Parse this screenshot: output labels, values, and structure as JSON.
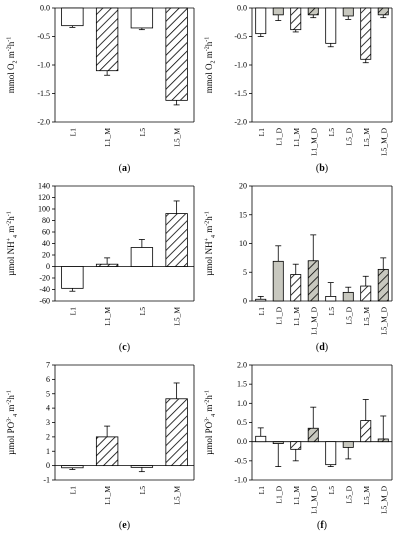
{
  "chart_data": [
    {
      "type": "bar",
      "panel_label": "(a)",
      "ylabel": "mmol O2 m-2h-1",
      "ylabel_parts": {
        "pre": "mmol O",
        "sub": "2",
        "mid": " m",
        "sup1": "-2",
        "mid2": "h",
        "sup2": "-1"
      },
      "ylim": [
        -2.0,
        0.0
      ],
      "yticks": [
        0.0,
        -0.5,
        -1.0,
        -1.5,
        -2.0
      ],
      "ytick_labels": [
        "0.0",
        "-0.5",
        "-1.0",
        "-1.5",
        "-2.0"
      ],
      "categories": [
        "L1",
        "L1_M",
        "L5",
        "L5_M"
      ],
      "values": [
        -0.31,
        -1.1,
        -0.35,
        -1.62
      ],
      "errors": [
        0.03,
        0.08,
        0.03,
        0.08
      ],
      "fills": [
        "white",
        "hatch",
        "white",
        "hatch"
      ]
    },
    {
      "type": "bar",
      "panel_label": "(b)",
      "ylabel": "mmol O2 m-2h-1",
      "ylabel_parts": {
        "pre": "mmol O",
        "sub": "2",
        "mid": " m",
        "sup1": "-2",
        "mid2": "h",
        "sup2": "-1"
      },
      "ylim": [
        -2.0,
        0.0
      ],
      "yticks": [
        0.0,
        -0.5,
        -1.0,
        -1.5,
        -2.0
      ],
      "ytick_labels": [
        "0.0",
        "-0.5",
        "-1.0",
        "-1.5",
        "-2.0"
      ],
      "categories": [
        "L1",
        "L1_D",
        "L1_M",
        "L1_M_D",
        "L5",
        "L5_D",
        "L5_M",
        "L5_M_D"
      ],
      "values": [
        -0.45,
        -0.12,
        -0.38,
        -0.12,
        -0.62,
        -0.14,
        -0.9,
        -0.12
      ],
      "errors": [
        0.05,
        0.1,
        0.04,
        0.05,
        0.06,
        0.06,
        0.06,
        0.05
      ],
      "fills": [
        "white",
        "gray",
        "hatch",
        "grayhatch",
        "white",
        "gray",
        "hatch",
        "grayhatch"
      ]
    },
    {
      "type": "bar",
      "panel_label": "(c)",
      "ylabel": "µmol NH4+ m-2h-1",
      "ylabel_parts": {
        "pre": "µmol NH",
        "sub": "4",
        "supsub": "+",
        "mid": " m",
        "sup1": "-2",
        "mid2": "h",
        "sup2": "-1"
      },
      "ylim": [
        -60,
        140
      ],
      "yticks": [
        -60,
        -40,
        -20,
        0,
        20,
        40,
        60,
        80,
        100,
        120,
        140
      ],
      "ytick_labels": [
        "-60",
        "-40",
        "-20",
        "0",
        "20",
        "40",
        "60",
        "80",
        "100",
        "120",
        "140"
      ],
      "categories": [
        "L1",
        "L1_M",
        "L5",
        "L5_M"
      ],
      "values": [
        -38,
        4,
        33,
        92
      ],
      "errors": [
        5,
        11,
        14,
        22
      ],
      "fills": [
        "white",
        "hatch",
        "white",
        "hatch"
      ]
    },
    {
      "type": "bar",
      "panel_label": "(d)",
      "ylabel": "µmol NH4+ m-2h-1",
      "ylabel_parts": {
        "pre": "µmol NH",
        "sub": "4",
        "supsub": "+",
        "mid": " m",
        "sup1": "-2",
        "mid2": "h",
        "sup2": "-1"
      },
      "ylim": [
        0,
        20
      ],
      "yticks": [
        0,
        5,
        10,
        15,
        20
      ],
      "ytick_labels": [
        "0",
        "5",
        "10",
        "15",
        "20"
      ],
      "categories": [
        "L1",
        "L1_D",
        "L1_M",
        "L1_M_D",
        "L5",
        "L5_D",
        "L5_M",
        "L5_M_D"
      ],
      "values": [
        0.3,
        6.9,
        4.6,
        7.0,
        0.8,
        1.5,
        2.6,
        5.5
      ],
      "errors": [
        0.5,
        2.7,
        1.8,
        4.5,
        2.4,
        0.9,
        1.7,
        2.0
      ],
      "fills": [
        "white",
        "gray",
        "hatch",
        "grayhatch",
        "white",
        "gray",
        "hatch",
        "grayhatch"
      ]
    },
    {
      "type": "bar",
      "panel_label": "(e)",
      "ylabel": "µmol PO43- m-2h-1",
      "ylabel_parts": {
        "pre": "µmol PO",
        "sub": "4",
        "supsub": "3-",
        "mid": " m",
        "sup1": "-2",
        "mid2": "h",
        "sup2": "-1"
      },
      "ylim": [
        -1,
        7
      ],
      "yticks": [
        -1,
        0,
        1,
        2,
        3,
        4,
        5,
        6,
        7
      ],
      "ytick_labels": [
        "-1",
        "0",
        "1",
        "2",
        "3",
        "4",
        "5",
        "6",
        "7"
      ],
      "categories": [
        "L1",
        "L1_M",
        "L5",
        "L5_M"
      ],
      "values": [
        -0.15,
        2.0,
        -0.12,
        4.65
      ],
      "errors": [
        0.12,
        0.75,
        0.3,
        1.1
      ],
      "fills": [
        "white",
        "hatch",
        "white",
        "hatch"
      ]
    },
    {
      "type": "bar",
      "panel_label": "(f)",
      "ylabel": "µmol PO43- m-2h-1",
      "ylabel_parts": {
        "pre": "µmol PO",
        "sub": "4",
        "supsub": "3-",
        "mid": " m",
        "sup1": "-2",
        "mid2": "h",
        "sup2": "-1"
      },
      "ylim": [
        -1.0,
        2.0
      ],
      "yticks": [
        -1.0,
        -0.5,
        0.0,
        0.5,
        1.0,
        1.5,
        2.0
      ],
      "ytick_labels": [
        "-1.0",
        "-0.5",
        "0.0",
        "0.5",
        "1.0",
        "1.5",
        "2.0"
      ],
      "categories": [
        "L1",
        "L1_D",
        "L1_M",
        "L1_M_D",
        "L5",
        "L5_D",
        "L5_M",
        "L5_M_D"
      ],
      "values": [
        0.14,
        -0.05,
        -0.2,
        0.35,
        -0.6,
        -0.15,
        0.55,
        0.07
      ],
      "errors": [
        0.22,
        0.6,
        0.3,
        0.55,
        0.05,
        0.3,
        0.55,
        0.6
      ],
      "fills": [
        "white",
        "gray",
        "hatch",
        "grayhatch",
        "white",
        "gray",
        "hatch",
        "grayhatch"
      ]
    }
  ],
  "colors": {
    "gray_fill": "#c8c8bf",
    "white_fill": "#ffffff",
    "axis": "#000000",
    "hatch": "#000000"
  }
}
